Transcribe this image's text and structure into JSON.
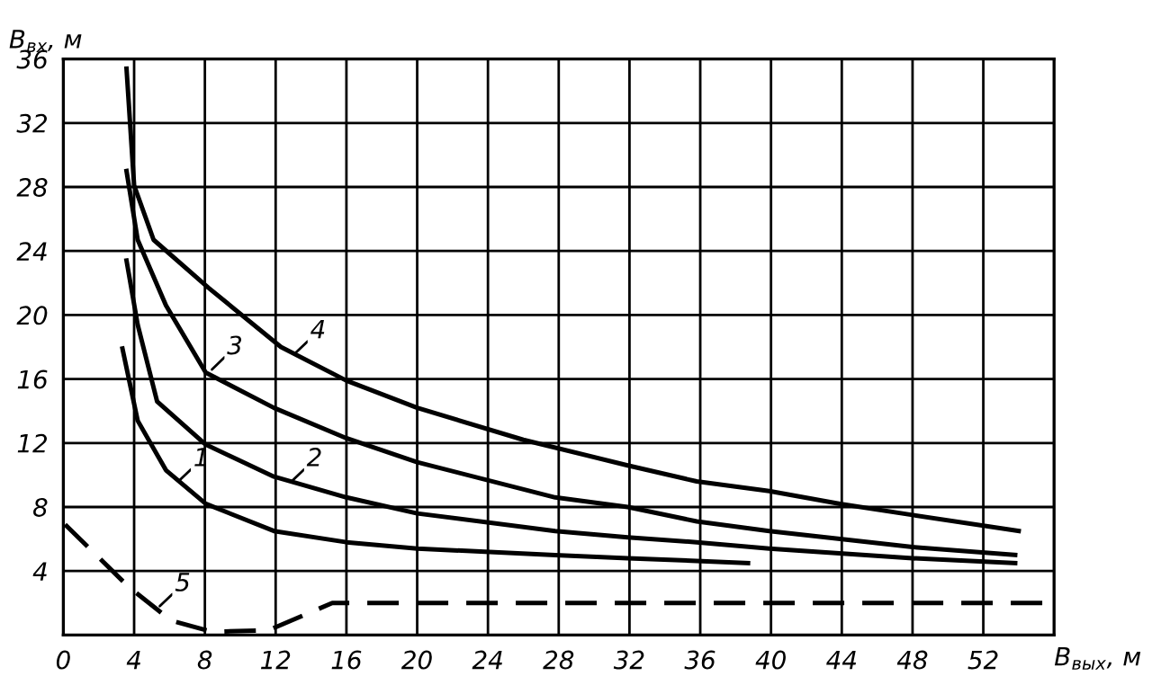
{
  "chart_data": {
    "type": "line",
    "xlabel": "B$_{вых}$, м",
    "ylabel": "B$_{вх}$, м",
    "xlim": [
      0,
      56
    ],
    "ylim": [
      0,
      36
    ],
    "xticks": [
      0,
      4,
      8,
      12,
      16,
      20,
      24,
      28,
      32,
      36,
      40,
      44,
      48,
      52
    ],
    "yticks": [
      {
        "value": 0,
        "label": null
      },
      4,
      8,
      12,
      16,
      20,
      24,
      28,
      32,
      36
    ],
    "grid": true,
    "marker": "none",
    "series": [
      {
        "color": "#000000",
        "line_style": "solid",
        "x": [
          3.34,
          4.2,
          5.8,
          8.05,
          11.9,
          16,
          20,
          27.8,
          31.9,
          38.7
        ],
        "values": [
          17.9,
          13.4,
          10.3,
          8.2,
          6.5,
          5.8,
          5.4,
          5.0,
          4.8,
          4.5
        ]
      },
      {
        "color": "#000000",
        "line_style": "solid",
        "x": [
          3.57,
          4.2,
          5.3,
          8.05,
          11.9,
          16,
          20,
          27.8,
          31.9,
          35.8,
          39.9,
          48,
          53.8
        ],
        "values": [
          23.4,
          19.4,
          14.6,
          11.9,
          9.9,
          8.6,
          7.6,
          6.5,
          6.1,
          5.8,
          5.4,
          4.8,
          4.5
        ]
      },
      {
        "color": "#000000",
        "line_style": "solid",
        "x": [
          3.57,
          4.2,
          5.8,
          8.05,
          11.9,
          16,
          20,
          27.8,
          31.9,
          35.8,
          39.9,
          43.9,
          48,
          53.8
        ],
        "values": [
          29.0,
          24.7,
          20.6,
          16.4,
          14.2,
          12.3,
          10.8,
          8.6,
          8.0,
          7.1,
          6.5,
          6.0,
          5.5,
          5.0
        ]
      },
      {
        "color": "#000000",
        "line_style": "solid",
        "x": [
          3.57,
          4.0,
          5.1,
          8.2,
          12.3,
          16,
          20,
          26,
          31.9,
          35.8,
          39.9,
          43.9,
          48,
          54
        ],
        "values": [
          35.4,
          28.1,
          24.7,
          21.7,
          18.0,
          15.9,
          14.2,
          12.2,
          10.6,
          9.6,
          9.0,
          8.2,
          7.5,
          6.5
        ]
      },
      {
        "color": "#000000",
        "line_style": "dashed",
        "x": [
          0.1,
          3.7,
          6.1,
          8.4,
          11.6,
          15.2,
          16,
          56
        ],
        "values": [
          6.9,
          3.0,
          0.9,
          0.2,
          0.3,
          2.0,
          2.0,
          2.0
        ]
      }
    ],
    "annotations": [
      {
        "text": "1",
        "x": 6.5,
        "y": 9.6
      },
      {
        "text": "2",
        "x": 12.9,
        "y": 9.6
      },
      {
        "text": "3",
        "x": 8.4,
        "y": 16.6
      },
      {
        "text": "4",
        "x": 13.1,
        "y": 17.6
      },
      {
        "text": "5",
        "x": 5.45,
        "y": 1.8
      }
    ]
  }
}
